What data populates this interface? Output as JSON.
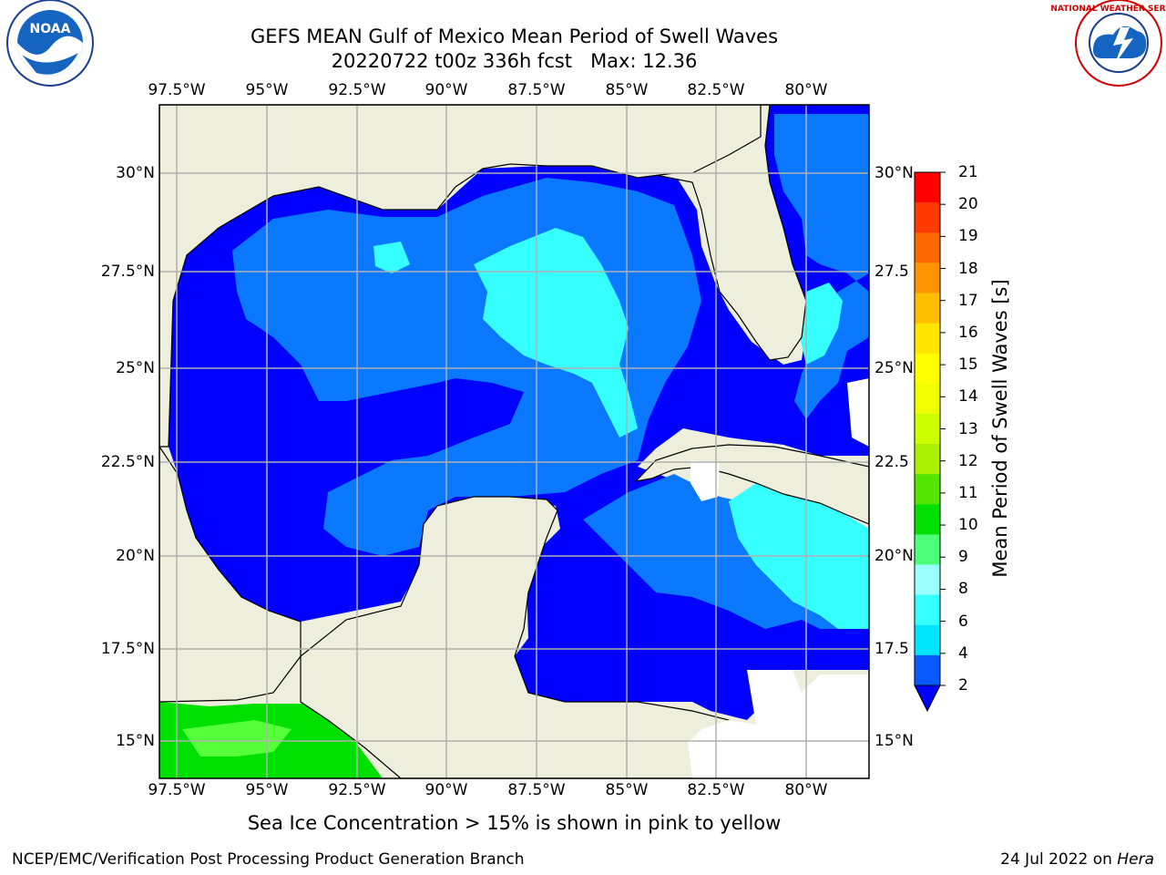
{
  "title_line1": "GEFS MEAN Gulf of Mexico Mean Period of Swell Waves",
  "title_line2": "20220722 t00z 336h fcst   Max: 12.36",
  "lon_ticks": [
    "97.5°W",
    "95°W",
    "92.5°W",
    "90°W",
    "87.5°W",
    "85°W",
    "82.5°W",
    "80°W"
  ],
  "lat_ticks_left": [
    "30°N",
    "27.5°N",
    "25°N",
    "22.5°N",
    "20°N",
    "17.5°N",
    "15°N"
  ],
  "lat_ticks_right": [
    "30°N",
    "27.5",
    "25°N",
    "22.5",
    "20°N",
    "17.5",
    "15°N"
  ],
  "colorbar": {
    "title": "Mean Period of Swell Waves [s]",
    "levels": [
      "2",
      "4",
      "6",
      "8",
      "9",
      "10",
      "11",
      "12",
      "13",
      "14",
      "15",
      "16",
      "17",
      "18",
      "19",
      "20",
      "21"
    ],
    "colors": [
      "#0a5bff",
      "#00e5ff",
      "#35ffff",
      "#9cffff",
      "#4dff7a",
      "#00e000",
      "#55e600",
      "#aaf000",
      "#ccff00",
      "#f0ff00",
      "#ffff00",
      "#ffe600",
      "#ffbf00",
      "#ff9400",
      "#ff6a00",
      "#ff3a00",
      "#ff0000"
    ],
    "extend_color": "#0000ff"
  },
  "colors": {
    "land": "#eeeedc",
    "sea_low": "#0000ff",
    "sea_mid": "#0a78ff",
    "sea_high": "#35ffff",
    "sea_green": "#00ff00"
  },
  "note": "Sea Ice Concentration > 15% is shown in pink to yellow",
  "footer_left": "NCEP/EMC/Verification Post Processing Product Generation Branch",
  "footer_right_date": "24 Jul 2022 on ",
  "footer_right_host": "Hera",
  "logos": {
    "noaa": "NOAA",
    "nws": "NATIONAL WEATHER SERVICE"
  }
}
